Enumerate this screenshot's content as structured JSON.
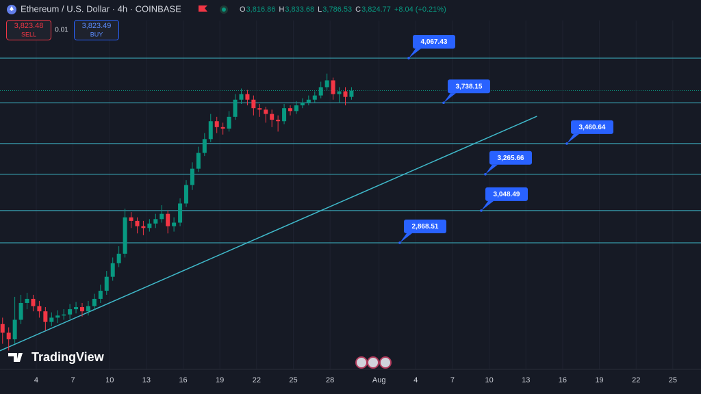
{
  "header": {
    "title": "Ethereum / U.S. Dollar · 4h · COINBASE",
    "ohlc": [
      {
        "label": "O",
        "value": "3,816.86"
      },
      {
        "label": "H",
        "value": "3,833.68"
      },
      {
        "label": "L",
        "value": "3,786.53"
      },
      {
        "label": "C",
        "value": "3,824.77"
      }
    ],
    "change": "+8.04 (+0.21%)",
    "sell": {
      "price": "3,823.48",
      "label": "SELL"
    },
    "spread": "0.01",
    "buy": {
      "price": "3,823.49",
      "label": "BUY"
    },
    "logo": "TradingView"
  },
  "chart_data": {
    "type": "candlestick",
    "log_scale": true,
    "grid": true,
    "up_color": "#089981",
    "down_color": "#f23645",
    "level_color": "#3fb8c9",
    "label_color": "#2962ff",
    "xlim": [
      1.04,
      58.3
    ],
    "ylim": [
      2258,
      4540
    ],
    "xticks": [
      4,
      7,
      10,
      13,
      16,
      19,
      22,
      25,
      28,
      {
        "value": 32,
        "label": "Aug"
      },
      {
        "value": 35,
        "label": "4"
      },
      {
        "value": 38,
        "label": "7"
      },
      {
        "value": 41,
        "label": "10"
      },
      {
        "value": 44,
        "label": "13"
      },
      {
        "value": 47,
        "label": "16"
      },
      {
        "value": 50,
        "label": "19"
      },
      {
        "value": 53,
        "label": "22"
      },
      {
        "value": 56,
        "label": "25"
      }
    ],
    "x": [
      1.25,
      1.75,
      2.25,
      2.75,
      3.25,
      3.75,
      4.25,
      4.75,
      5.25,
      5.75,
      6.25,
      6.75,
      7.25,
      7.75,
      8.25,
      8.75,
      9.25,
      9.75,
      10.25,
      10.75,
      11.25,
      11.75,
      12.25,
      12.75,
      13.25,
      13.75,
      14.25,
      14.75,
      15.25,
      15.75,
      16.25,
      16.75,
      17.25,
      17.75,
      18.25,
      18.75,
      19.25,
      19.75,
      20.25,
      20.75,
      21.25,
      21.75,
      22.25,
      22.75,
      23.25,
      23.75,
      24.25,
      24.75,
      25.25,
      25.75,
      26.25,
      26.75,
      27.25,
      27.75,
      28.25,
      28.75,
      29.25,
      29.75
    ],
    "open": [
      2460,
      2420,
      2390,
      2480,
      2560,
      2580,
      2545,
      2520,
      2470,
      2490,
      2500,
      2505,
      2530,
      2540,
      2520,
      2545,
      2580,
      2620,
      2690,
      2760,
      2810,
      3010,
      2990,
      2960,
      2950,
      2975,
      3000,
      3030,
      2960,
      2980,
      3090,
      3200,
      3300,
      3400,
      3490,
      3610,
      3570,
      3560,
      3640,
      3760,
      3800,
      3760,
      3700,
      3690,
      3660,
      3620,
      3610,
      3700,
      3680,
      3720,
      3740,
      3760,
      3790,
      3850,
      3900,
      3800,
      3820,
      3780
    ],
    "high": [
      2490,
      2445,
      2590,
      2600,
      2610,
      2600,
      2570,
      2540,
      2515,
      2525,
      2530,
      2555,
      2565,
      2560,
      2570,
      2605,
      2650,
      2720,
      2790,
      2850,
      3060,
      3040,
      3010,
      2990,
      3000,
      3030,
      3080,
      3050,
      3010,
      3120,
      3230,
      3340,
      3440,
      3530,
      3660,
      3640,
      3600,
      3680,
      3800,
      3840,
      3830,
      3790,
      3730,
      3710,
      3690,
      3650,
      3730,
      3720,
      3750,
      3770,
      3790,
      3820,
      3890,
      3950,
      3920,
      3850,
      3850,
      3850
    ],
    "low": [
      2370,
      2340,
      2370,
      2460,
      2530,
      2520,
      2490,
      2430,
      2450,
      2465,
      2480,
      2485,
      2510,
      2495,
      2500,
      2525,
      2560,
      2600,
      2670,
      2740,
      2790,
      2950,
      2920,
      2910,
      2930,
      2950,
      2980,
      2920,
      2930,
      2960,
      3070,
      3170,
      3280,
      3380,
      3470,
      3530,
      3520,
      3540,
      3620,
      3730,
      3720,
      3650,
      3640,
      3600,
      3570,
      3540,
      3590,
      3650,
      3660,
      3700,
      3720,
      3740,
      3770,
      3830,
      3760,
      3740,
      3720,
      3760
    ],
    "close": [
      2420,
      2390,
      2480,
      2560,
      2580,
      2545,
      2520,
      2470,
      2490,
      2500,
      2505,
      2530,
      2540,
      2520,
      2545,
      2580,
      2620,
      2690,
      2760,
      2810,
      3010,
      2990,
      2960,
      2950,
      2975,
      3000,
      3030,
      2960,
      2980,
      3090,
      3200,
      3300,
      3400,
      3490,
      3610,
      3570,
      3560,
      3640,
      3760,
      3800,
      3760,
      3700,
      3690,
      3660,
      3620,
      3610,
      3700,
      3680,
      3720,
      3740,
      3760,
      3790,
      3850,
      3900,
      3800,
      3820,
      3780,
      3825
    ],
    "last_price": 3824.77,
    "levels": {
      "values": [
        4067.43,
        3738.15,
        3460.64,
        3265.66,
        3048.49,
        2868.51
      ],
      "value_labels": [
        "4,067.43",
        "3,738.15",
        "3,460.64",
        "3,265.66",
        "3,048.49",
        "2,868.51"
      ]
    },
    "trendline": {
      "x": [
        1.04,
        44.9
      ],
      "values": [
        2339,
        3644
      ]
    }
  }
}
